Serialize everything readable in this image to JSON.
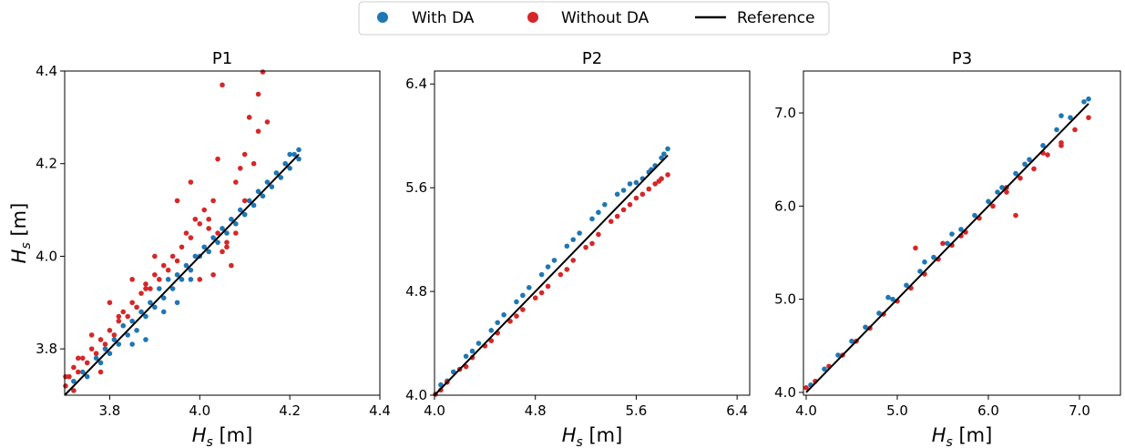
{
  "legend": {
    "items": [
      {
        "label": "With DA",
        "color": "#1f77b4",
        "marker": "dot"
      },
      {
        "label": "Without DA",
        "color": "#d62728",
        "marker": "dot"
      },
      {
        "label": "Reference",
        "color": "#000000",
        "marker": "line"
      }
    ],
    "placement": "top-center"
  },
  "chart_data": [
    {
      "type": "scatter",
      "title": "P1",
      "xlabel": "H_s [m]",
      "ylabel": "H_s [m]",
      "xlim": [
        3.7,
        4.4
      ],
      "ylim": [
        3.7,
        4.4
      ],
      "xticks": [
        "3.8",
        "4.0",
        "4.2",
        "4.4"
      ],
      "yticks": [
        "3.8",
        "4.0",
        "4.2",
        "4.4"
      ],
      "grid": false,
      "reference": [
        [
          3.7,
          3.7
        ],
        [
          4.22,
          4.22
        ]
      ],
      "series": [
        {
          "name": "With DA",
          "color": "#1f77b4",
          "points": [
            [
              3.72,
              3.73
            ],
            [
              3.74,
              3.75
            ],
            [
              3.75,
              3.74
            ],
            [
              3.77,
              3.78
            ],
            [
              3.78,
              3.77
            ],
            [
              3.79,
              3.8
            ],
            [
              3.8,
              3.79
            ],
            [
              3.81,
              3.82
            ],
            [
              3.82,
              3.81
            ],
            [
              3.83,
              3.85
            ],
            [
              3.84,
              3.83
            ],
            [
              3.85,
              3.86
            ],
            [
              3.86,
              3.84
            ],
            [
              3.87,
              3.88
            ],
            [
              3.88,
              3.87
            ],
            [
              3.89,
              3.9
            ],
            [
              3.9,
              3.89
            ],
            [
              3.91,
              3.93
            ],
            [
              3.92,
              3.91
            ],
            [
              3.93,
              3.95
            ],
            [
              3.94,
              3.93
            ],
            [
              3.95,
              3.96
            ],
            [
              3.96,
              3.95
            ],
            [
              3.97,
              3.98
            ],
            [
              3.98,
              3.97
            ],
            [
              3.99,
              4.0
            ],
            [
              4.0,
              4.0
            ],
            [
              4.01,
              4.02
            ],
            [
              4.02,
              4.01
            ],
            [
              4.03,
              4.04
            ],
            [
              4.04,
              4.03
            ],
            [
              4.05,
              4.06
            ],
            [
              4.06,
              4.05
            ],
            [
              4.07,
              4.08
            ],
            [
              4.08,
              4.07
            ],
            [
              4.09,
              4.1
            ],
            [
              4.1,
              4.09
            ],
            [
              4.11,
              4.12
            ],
            [
              4.12,
              4.11
            ],
            [
              4.13,
              4.14
            ],
            [
              4.14,
              4.13
            ],
            [
              4.15,
              4.16
            ],
            [
              4.16,
              4.15
            ],
            [
              4.17,
              4.18
            ],
            [
              4.18,
              4.17
            ],
            [
              4.19,
              4.2
            ],
            [
              4.2,
              4.19
            ],
            [
              4.21,
              4.22
            ],
            [
              4.22,
              4.23
            ],
            [
              4.2,
              4.22
            ],
            [
              4.22,
              4.21
            ],
            [
              3.85,
              3.81
            ],
            [
              3.88,
              3.82
            ],
            [
              3.92,
              3.88
            ],
            [
              3.95,
              3.9
            ],
            [
              3.98,
              3.95
            ]
          ]
        },
        {
          "name": "Without DA",
          "color": "#d62728",
          "points": [
            [
              3.7,
              3.72
            ],
            [
              3.71,
              3.74
            ],
            [
              3.72,
              3.76
            ],
            [
              3.73,
              3.75
            ],
            [
              3.74,
              3.78
            ],
            [
              3.75,
              3.77
            ],
            [
              3.76,
              3.8
            ],
            [
              3.77,
              3.79
            ],
            [
              3.78,
              3.82
            ],
            [
              3.79,
              3.81
            ],
            [
              3.8,
              3.84
            ],
            [
              3.81,
              3.83
            ],
            [
              3.82,
              3.86
            ],
            [
              3.83,
              3.88
            ],
            [
              3.84,
              3.87
            ],
            [
              3.85,
              3.9
            ],
            [
              3.86,
              3.89
            ],
            [
              3.87,
              3.92
            ],
            [
              3.88,
              3.94
            ],
            [
              3.89,
              3.93
            ],
            [
              3.9,
              3.96
            ],
            [
              3.91,
              3.95
            ],
            [
              3.92,
              3.98
            ],
            [
              3.93,
              3.97
            ],
            [
              3.94,
              4.0
            ],
            [
              3.95,
              3.99
            ],
            [
              3.96,
              4.02
            ],
            [
              3.97,
              4.05
            ],
            [
              3.98,
              4.04
            ],
            [
              3.99,
              4.08
            ],
            [
              4.0,
              4.07
            ],
            [
              4.01,
              4.1
            ],
            [
              4.02,
              4.06
            ],
            [
              4.03,
              4.12
            ],
            [
              4.04,
              4.05
            ],
            [
              4.05,
              4.01
            ],
            [
              4.06,
              4.02
            ],
            [
              4.07,
              3.98
            ],
            [
              4.0,
              3.95
            ],
            [
              4.03,
              3.96
            ],
            [
              4.06,
              4.03
            ],
            [
              4.08,
              4.05
            ],
            [
              4.1,
              4.12
            ],
            [
              4.12,
              4.2
            ],
            [
              4.13,
              4.27
            ],
            [
              4.13,
              4.35
            ],
            [
              4.14,
              4.4
            ],
            [
              4.11,
              4.3
            ],
            [
              4.1,
              4.22
            ],
            [
              4.15,
              4.29
            ],
            [
              4.05,
              4.37
            ],
            [
              4.04,
              4.21
            ],
            [
              3.98,
              4.16
            ],
            [
              3.95,
              4.12
            ],
            [
              3.9,
              4.0
            ],
            [
              3.85,
              3.95
            ],
            [
              3.88,
              3.93
            ],
            [
              3.82,
              3.87
            ],
            [
              3.8,
              3.9
            ],
            [
              3.76,
              3.83
            ],
            [
              3.73,
              3.78
            ],
            [
              3.7,
              3.74
            ],
            [
              3.72,
              3.71
            ],
            [
              3.78,
              3.75
            ],
            [
              4.02,
              4.08
            ],
            [
              4.08,
              4.16
            ],
            [
              4.09,
              4.19
            ]
          ]
        }
      ]
    },
    {
      "type": "scatter",
      "title": "P2",
      "xlabel": "H_s [m]",
      "ylabel": "",
      "xlim": [
        4.0,
        6.5
      ],
      "ylim": [
        4.0,
        6.5
      ],
      "xticks": [
        "4.0",
        "4.8",
        "5.6",
        "6.4"
      ],
      "yticks": [
        "4.0",
        "4.8",
        "5.6",
        "6.4"
      ],
      "grid": false,
      "reference": [
        [
          4.0,
          4.0
        ],
        [
          5.85,
          5.85
        ]
      ],
      "series": [
        {
          "name": "With DA",
          "color": "#1f77b4",
          "points": [
            [
              4.05,
              4.08
            ],
            [
              4.15,
              4.18
            ],
            [
              4.25,
              4.3
            ],
            [
              4.35,
              4.4
            ],
            [
              4.45,
              4.5
            ],
            [
              4.55,
              4.62
            ],
            [
              4.65,
              4.72
            ],
            [
              4.75,
              4.83
            ],
            [
              4.85,
              4.93
            ],
            [
              4.95,
              5.04
            ],
            [
              5.05,
              5.15
            ],
            [
              5.15,
              5.25
            ],
            [
              5.25,
              5.36
            ],
            [
              5.35,
              5.47
            ],
            [
              5.45,
              5.55
            ],
            [
              5.55,
              5.63
            ],
            [
              5.6,
              5.64
            ],
            [
              5.65,
              5.67
            ],
            [
              5.7,
              5.72
            ],
            [
              5.75,
              5.77
            ],
            [
              5.8,
              5.83
            ],
            [
              5.85,
              5.9
            ],
            [
              4.1,
              4.11
            ],
            [
              4.3,
              4.34
            ],
            [
              4.5,
              4.56
            ],
            [
              4.7,
              4.77
            ],
            [
              4.9,
              4.99
            ],
            [
              5.1,
              5.2
            ],
            [
              5.3,
              5.41
            ],
            [
              5.5,
              5.58
            ],
            [
              5.72,
              5.74
            ],
            [
              5.82,
              5.86
            ]
          ]
        },
        {
          "name": "Without DA",
          "color": "#d62728",
          "points": [
            [
              4.0,
              4.0
            ],
            [
              4.1,
              4.1
            ],
            [
              4.2,
              4.2
            ],
            [
              4.3,
              4.29
            ],
            [
              4.4,
              4.38
            ],
            [
              4.5,
              4.48
            ],
            [
              4.6,
              4.57
            ],
            [
              4.7,
              4.66
            ],
            [
              4.8,
              4.75
            ],
            [
              4.9,
              4.84
            ],
            [
              5.0,
              4.93
            ],
            [
              5.1,
              5.04
            ],
            [
              5.2,
              5.14
            ],
            [
              5.3,
              5.24
            ],
            [
              5.4,
              5.34
            ],
            [
              5.5,
              5.43
            ],
            [
              5.55,
              5.47
            ],
            [
              5.6,
              5.52
            ],
            [
              5.65,
              5.55
            ],
            [
              5.7,
              5.59
            ],
            [
              5.75,
              5.63
            ],
            [
              5.8,
              5.67
            ],
            [
              5.85,
              5.7
            ],
            [
              4.05,
              4.04
            ],
            [
              4.25,
              4.22
            ],
            [
              4.45,
              4.42
            ],
            [
              4.65,
              4.61
            ],
            [
              4.85,
              4.79
            ],
            [
              5.05,
              4.97
            ],
            [
              5.25,
              5.17
            ],
            [
              5.45,
              5.38
            ],
            [
              5.78,
              5.65
            ]
          ]
        }
      ]
    },
    {
      "type": "scatter",
      "title": "P3",
      "xlabel": "H_s [m]",
      "ylabel": "",
      "xlim": [
        3.97,
        7.45
      ],
      "ylim": [
        3.97,
        7.45
      ],
      "xticks": [
        "4.0",
        "5.0",
        "6.0",
        "7.0"
      ],
      "yticks": [
        "4.0",
        "5.0",
        "6.0",
        "7.0"
      ],
      "grid": false,
      "reference": [
        [
          4.0,
          4.0
        ],
        [
          7.1,
          7.1
        ]
      ],
      "series": [
        {
          "name": "With DA",
          "color": "#1f77b4",
          "points": [
            [
              4.05,
              4.08
            ],
            [
              4.2,
              4.25
            ],
            [
              4.35,
              4.4
            ],
            [
              4.5,
              4.55
            ],
            [
              4.65,
              4.7
            ],
            [
              4.8,
              4.85
            ],
            [
              4.95,
              5.0
            ],
            [
              5.1,
              5.15
            ],
            [
              5.25,
              5.3
            ],
            [
              5.4,
              5.45
            ],
            [
              5.55,
              5.6
            ],
            [
              5.7,
              5.75
            ],
            [
              5.85,
              5.9
            ],
            [
              6.0,
              6.05
            ],
            [
              6.15,
              6.2
            ],
            [
              6.3,
              6.35
            ],
            [
              6.45,
              6.5
            ],
            [
              6.6,
              6.65
            ],
            [
              6.75,
              6.82
            ],
            [
              6.9,
              6.95
            ],
            [
              7.05,
              7.12
            ],
            [
              7.1,
              7.15
            ],
            [
              4.9,
              5.02
            ],
            [
              5.3,
              5.4
            ],
            [
              5.6,
              5.7
            ],
            [
              6.1,
              6.15
            ],
            [
              6.4,
              6.45
            ],
            [
              6.8,
              6.97
            ]
          ]
        },
        {
          "name": "Without DA",
          "color": "#d62728",
          "points": [
            [
              4.0,
              4.05
            ],
            [
              4.1,
              4.12
            ],
            [
              4.25,
              4.28
            ],
            [
              4.4,
              4.4
            ],
            [
              4.55,
              4.55
            ],
            [
              4.7,
              4.69
            ],
            [
              4.85,
              4.84
            ],
            [
              5.0,
              4.98
            ],
            [
              5.15,
              5.12
            ],
            [
              5.3,
              5.27
            ],
            [
              5.45,
              5.43
            ],
            [
              5.6,
              5.58
            ],
            [
              5.75,
              5.72
            ],
            [
              5.9,
              5.87
            ],
            [
              6.05,
              6.0
            ],
            [
              6.2,
              6.15
            ],
            [
              6.35,
              6.3
            ],
            [
              6.5,
              6.4
            ],
            [
              6.65,
              6.55
            ],
            [
              6.8,
              6.68
            ],
            [
              6.95,
              6.82
            ],
            [
              7.1,
              6.95
            ],
            [
              5.2,
              5.55
            ],
            [
              5.5,
              5.6
            ],
            [
              5.7,
              5.68
            ],
            [
              6.2,
              6.2
            ],
            [
              6.3,
              5.9
            ],
            [
              6.6,
              6.57
            ],
            [
              6.8,
              6.65
            ]
          ]
        }
      ]
    }
  ]
}
